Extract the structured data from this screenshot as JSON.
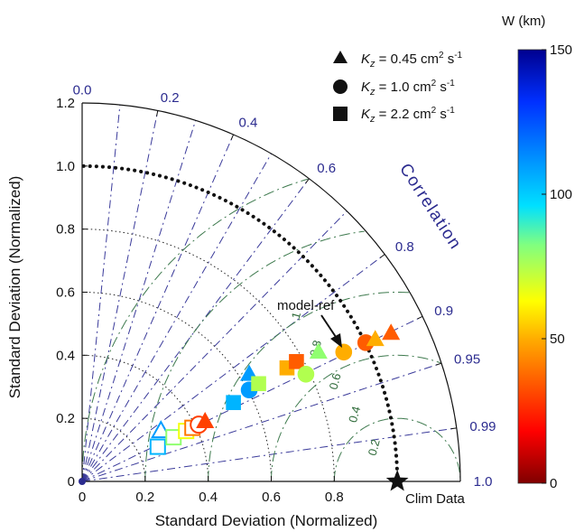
{
  "chart_data": {
    "type": "scatter",
    "subtype": "taylor-diagram",
    "xlabel": "Standard Deviation (Normalized)",
    "ylabel": "Standard Deviation (Normalized)",
    "xticks": [
      "0",
      "0.2",
      "0.4",
      "0.6",
      "0.8"
    ],
    "yticks": [
      "0",
      "0.2",
      "0.4",
      "0.6",
      "0.8",
      "1.0",
      "1.2"
    ],
    "std_max": 1.2,
    "correlation_title": "Correlation",
    "correlation_ticks": [
      "0.0",
      "0.2",
      "0.4",
      "0.6",
      "0.8",
      "0.9",
      "0.95",
      "0.99",
      "1.0"
    ],
    "rms_ticks": [
      "0.2",
      "0.4",
      "0.6",
      "0.8",
      "1"
    ],
    "reference": {
      "std": 1.0,
      "corr": 1.0,
      "label": "Clim Data"
    },
    "annotation": {
      "text": "model-ref"
    },
    "legend": [
      {
        "marker": "triangle",
        "label_prefix": "K",
        "label_sub": "z",
        "label_value": " = 0.45 cm",
        "label_sup": "2",
        "label_unit": " s",
        "label_sup2": "-1"
      },
      {
        "marker": "circle",
        "label_prefix": "K",
        "label_sub": "z",
        "label_value": " = 1.0 cm",
        "label_sup": "2",
        "label_unit": " s",
        "label_sup2": "-1"
      },
      {
        "marker": "square",
        "label_prefix": "K",
        "label_sub": "z",
        "label_value": " = 2.2 cm",
        "label_sup": "2",
        "label_unit": " s",
        "label_sup2": "-1"
      }
    ],
    "colorbar": {
      "title": "W (km)",
      "min": 0,
      "max": 150,
      "ticks": [
        "0",
        "50",
        "100",
        "150"
      ]
    },
    "points": [
      {
        "x": 0.25,
        "y": 0.16,
        "marker": "triangle",
        "w": 110,
        "filled": false
      },
      {
        "x": 0.24,
        "y": 0.11,
        "marker": "square",
        "w": 105,
        "filled": false
      },
      {
        "x": 0.29,
        "y": 0.14,
        "marker": "square",
        "w": 80,
        "filled": false
      },
      {
        "x": 0.33,
        "y": 0.16,
        "marker": "square",
        "w": 65,
        "filled": false
      },
      {
        "x": 0.35,
        "y": 0.17,
        "marker": "square",
        "w": 40,
        "filled": false
      },
      {
        "x": 0.37,
        "y": 0.18,
        "marker": "circle",
        "w": 30,
        "filled": false
      },
      {
        "x": 0.39,
        "y": 0.19,
        "marker": "triangle",
        "w": 30,
        "filled": true
      },
      {
        "x": 0.48,
        "y": 0.25,
        "marker": "square",
        "w": 105,
        "filled": true
      },
      {
        "x": 0.53,
        "y": 0.34,
        "marker": "triangle",
        "w": 110,
        "filled": true
      },
      {
        "x": 0.53,
        "y": 0.29,
        "marker": "circle",
        "w": 110,
        "filled": true
      },
      {
        "x": 0.56,
        "y": 0.31,
        "marker": "square",
        "w": 75,
        "filled": true
      },
      {
        "x": 0.65,
        "y": 0.36,
        "marker": "square",
        "w": 50,
        "filled": true
      },
      {
        "x": 0.68,
        "y": 0.38,
        "marker": "square",
        "w": 35,
        "filled": true
      },
      {
        "x": 0.71,
        "y": 0.34,
        "marker": "circle",
        "w": 75,
        "filled": true
      },
      {
        "x": 0.75,
        "y": 0.41,
        "marker": "triangle",
        "w": 80,
        "filled": true
      },
      {
        "x": 0.83,
        "y": 0.41,
        "marker": "circle",
        "w": 50,
        "filled": true
      },
      {
        "x": 0.9,
        "y": 0.44,
        "marker": "circle",
        "w": 35,
        "filled": true
      },
      {
        "x": 0.93,
        "y": 0.45,
        "marker": "triangle",
        "w": 50,
        "filled": true
      },
      {
        "x": 0.98,
        "y": 0.47,
        "marker": "triangle",
        "w": 35,
        "filled": true
      }
    ]
  }
}
